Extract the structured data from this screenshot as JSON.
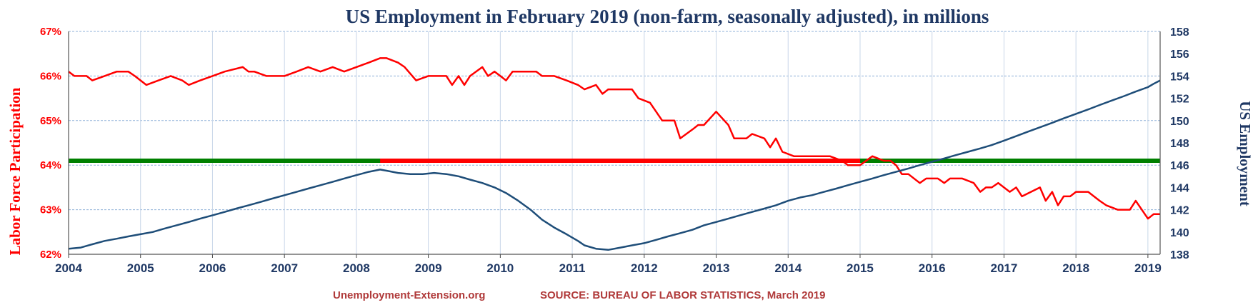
{
  "chart_data": {
    "type": "line",
    "title": "US Employment in February 2019 (non-farm, seasonally adjusted), in millions",
    "ylabel_left": "Labor Force Participation",
    "ylabel_right": "US Employment",
    "footer_left": "Unemployment-Extension.org",
    "footer_right": "SOURCE: BUREAU OF LABOR STATISTICS, March 2019",
    "x_ticks": [
      "2004",
      "2005",
      "2006",
      "2007",
      "2008",
      "2009",
      "2010",
      "2011",
      "2012",
      "2013",
      "2014",
      "2015",
      "2016",
      "2017",
      "2018",
      "2019"
    ],
    "xlim": [
      2004,
      2019.17
    ],
    "y_left_ticks": [
      "62%",
      "63%",
      "64%",
      "65%",
      "66%",
      "67%"
    ],
    "y_left_lim": [
      62,
      67
    ],
    "y_right_ticks": [
      "138",
      "140",
      "142",
      "144",
      "146",
      "148",
      "150",
      "152",
      "154",
      "156",
      "158"
    ],
    "y_right_lim": [
      138,
      158
    ],
    "grid": true,
    "colors": {
      "participation": "#ff0000",
      "employment": "#1f4e79",
      "reference_green": "#008000",
      "reference_red": "#ff0000",
      "title": "#1f3864"
    },
    "series": [
      {
        "axis": "left",
        "points": [
          [
            2004.0,
            66.1
          ],
          [
            2004.08,
            66.0
          ],
          [
            2004.25,
            66.0
          ],
          [
            2004.33,
            65.9
          ],
          [
            2004.5,
            66.0
          ],
          [
            2004.67,
            66.1
          ],
          [
            2004.83,
            66.1
          ],
          [
            2004.92,
            66.0
          ],
          [
            2005.08,
            65.8
          ],
          [
            2005.25,
            65.9
          ],
          [
            2005.42,
            66.0
          ],
          [
            2005.58,
            65.9
          ],
          [
            2005.67,
            65.8
          ],
          [
            2005.83,
            65.9
          ],
          [
            2006.0,
            66.0
          ],
          [
            2006.17,
            66.1
          ],
          [
            2006.42,
            66.2
          ],
          [
            2006.5,
            66.1
          ],
          [
            2006.58,
            66.1
          ],
          [
            2006.75,
            66.0
          ],
          [
            2006.92,
            66.0
          ],
          [
            2007.0,
            66.0
          ],
          [
            2007.17,
            66.1
          ],
          [
            2007.33,
            66.2
          ],
          [
            2007.5,
            66.1
          ],
          [
            2007.67,
            66.2
          ],
          [
            2007.83,
            66.1
          ],
          [
            2008.0,
            66.2
          ],
          [
            2008.17,
            66.3
          ],
          [
            2008.33,
            66.4
          ],
          [
            2008.42,
            66.4
          ],
          [
            2008.58,
            66.3
          ],
          [
            2008.67,
            66.2
          ],
          [
            2008.83,
            65.9
          ],
          [
            2009.0,
            66.0
          ],
          [
            2009.17,
            66.0
          ],
          [
            2009.25,
            66.0
          ],
          [
            2009.33,
            65.8
          ],
          [
            2009.42,
            66.0
          ],
          [
            2009.5,
            65.8
          ],
          [
            2009.58,
            66.0
          ],
          [
            2009.75,
            66.2
          ],
          [
            2009.83,
            66.0
          ],
          [
            2009.92,
            66.1
          ],
          [
            2010.0,
            66.0
          ],
          [
            2010.08,
            65.9
          ],
          [
            2010.17,
            66.1
          ],
          [
            2010.33,
            66.1
          ],
          [
            2010.5,
            66.1
          ],
          [
            2010.58,
            66.0
          ],
          [
            2010.75,
            66.0
          ],
          [
            2010.92,
            65.9
          ],
          [
            2011.08,
            65.8
          ],
          [
            2011.17,
            65.7
          ],
          [
            2011.33,
            65.8
          ],
          [
            2011.42,
            65.6
          ],
          [
            2011.5,
            65.7
          ],
          [
            2011.67,
            65.7
          ],
          [
            2011.83,
            65.7
          ],
          [
            2011.92,
            65.5
          ],
          [
            2012.08,
            65.4
          ],
          [
            2012.25,
            65.0
          ],
          [
            2012.33,
            65.0
          ],
          [
            2012.42,
            65.0
          ],
          [
            2012.5,
            64.6
          ],
          [
            2012.67,
            64.8
          ],
          [
            2012.75,
            64.9
          ],
          [
            2012.83,
            64.9
          ],
          [
            2013.0,
            65.2
          ],
          [
            2013.17,
            64.9
          ],
          [
            2013.25,
            64.6
          ],
          [
            2013.42,
            64.6
          ],
          [
            2013.5,
            64.7
          ],
          [
            2013.67,
            64.6
          ],
          [
            2013.75,
            64.4
          ],
          [
            2013.83,
            64.6
          ],
          [
            2013.92,
            64.3
          ],
          [
            2014.08,
            64.2
          ],
          [
            2014.25,
            64.2
          ],
          [
            2014.42,
            64.2
          ],
          [
            2014.58,
            64.2
          ],
          [
            2014.75,
            64.1
          ],
          [
            2014.83,
            64.0
          ],
          [
            2014.92,
            64.0
          ],
          [
            2015.0,
            64.0
          ],
          [
            2015.17,
            64.2
          ],
          [
            2015.33,
            64.1
          ],
          [
            2015.42,
            64.1
          ],
          [
            2015.5,
            64.0
          ],
          [
            2015.58,
            63.8
          ],
          [
            2015.67,
            63.8
          ],
          [
            2015.83,
            63.6
          ],
          [
            2015.92,
            63.7
          ],
          [
            2016.08,
            63.7
          ],
          [
            2016.17,
            63.6
          ],
          [
            2016.25,
            63.7
          ],
          [
            2016.42,
            63.7
          ],
          [
            2016.58,
            63.6
          ],
          [
            2016.67,
            63.4
          ],
          [
            2016.75,
            63.5
          ],
          [
            2016.83,
            63.5
          ],
          [
            2016.92,
            63.6
          ],
          [
            2017.08,
            63.4
          ],
          [
            2017.17,
            63.5
          ],
          [
            2017.25,
            63.3
          ],
          [
            2017.5,
            63.5
          ],
          [
            2017.58,
            63.2
          ],
          [
            2017.67,
            63.4
          ],
          [
            2017.75,
            63.1
          ],
          [
            2017.83,
            63.3
          ],
          [
            2017.92,
            63.3
          ],
          [
            2018.0,
            63.4
          ],
          [
            2018.17,
            63.4
          ],
          [
            2018.25,
            63.3
          ],
          [
            2018.33,
            63.2
          ],
          [
            2018.42,
            63.1
          ],
          [
            2018.58,
            63.0
          ],
          [
            2018.75,
            63.0
          ],
          [
            2018.83,
            63.2
          ],
          [
            2019.0,
            62.8
          ],
          [
            2019.08,
            62.9
          ],
          [
            2019.17,
            62.9
          ]
        ]
      },
      {
        "axis": "right",
        "points": [
          [
            2004.0,
            138.5
          ],
          [
            2004.17,
            138.6
          ],
          [
            2004.33,
            138.9
          ],
          [
            2004.5,
            139.2
          ],
          [
            2004.67,
            139.4
          ],
          [
            2004.83,
            139.6
          ],
          [
            2005.0,
            139.8
          ],
          [
            2005.17,
            140.0
          ],
          [
            2005.33,
            140.3
          ],
          [
            2005.5,
            140.6
          ],
          [
            2005.67,
            140.9
          ],
          [
            2005.83,
            141.2
          ],
          [
            2006.0,
            141.5
          ],
          [
            2006.17,
            141.8
          ],
          [
            2006.33,
            142.1
          ],
          [
            2006.5,
            142.4
          ],
          [
            2006.67,
            142.7
          ],
          [
            2006.83,
            143.0
          ],
          [
            2007.0,
            143.3
          ],
          [
            2007.17,
            143.6
          ],
          [
            2007.33,
            143.9
          ],
          [
            2007.5,
            144.2
          ],
          [
            2007.67,
            144.5
          ],
          [
            2007.83,
            144.8
          ],
          [
            2008.0,
            145.1
          ],
          [
            2008.17,
            145.4
          ],
          [
            2008.33,
            145.6
          ],
          [
            2008.42,
            145.5
          ],
          [
            2008.58,
            145.3
          ],
          [
            2008.75,
            145.2
          ],
          [
            2008.92,
            145.2
          ],
          [
            2009.08,
            145.3
          ],
          [
            2009.25,
            145.2
          ],
          [
            2009.42,
            145.0
          ],
          [
            2009.58,
            144.7
          ],
          [
            2009.75,
            144.4
          ],
          [
            2009.92,
            144.0
          ],
          [
            2010.08,
            143.5
          ],
          [
            2010.25,
            142.8
          ],
          [
            2010.42,
            142.0
          ],
          [
            2010.58,
            141.1
          ],
          [
            2010.75,
            140.4
          ],
          [
            2010.92,
            139.8
          ],
          [
            2011.08,
            139.2
          ],
          [
            2011.17,
            138.8
          ],
          [
            2011.33,
            138.5
          ],
          [
            2011.5,
            138.4
          ],
          [
            2011.67,
            138.6
          ],
          [
            2011.83,
            138.8
          ],
          [
            2012.0,
            139.0
          ],
          [
            2012.17,
            139.3
          ],
          [
            2012.33,
            139.6
          ],
          [
            2012.5,
            139.9
          ],
          [
            2012.67,
            140.2
          ],
          [
            2012.83,
            140.6
          ],
          [
            2013.0,
            140.9
          ],
          [
            2013.17,
            141.2
          ],
          [
            2013.33,
            141.5
          ],
          [
            2013.5,
            141.8
          ],
          [
            2013.67,
            142.1
          ],
          [
            2013.83,
            142.4
          ],
          [
            2014.0,
            142.8
          ],
          [
            2014.17,
            143.1
          ],
          [
            2014.33,
            143.3
          ],
          [
            2014.5,
            143.6
          ],
          [
            2014.67,
            143.9
          ],
          [
            2014.83,
            144.2
          ],
          [
            2015.0,
            144.5
          ],
          [
            2015.17,
            144.8
          ],
          [
            2015.33,
            145.1
          ],
          [
            2015.5,
            145.4
          ],
          [
            2015.67,
            145.7
          ],
          [
            2015.83,
            146.0
          ],
          [
            2016.0,
            146.3
          ],
          [
            2016.17,
            146.6
          ],
          [
            2016.33,
            146.9
          ],
          [
            2016.5,
            147.2
          ],
          [
            2016.67,
            147.5
          ],
          [
            2016.83,
            147.8
          ],
          [
            2017.0,
            148.2
          ],
          [
            2017.17,
            148.6
          ],
          [
            2017.33,
            149.0
          ],
          [
            2017.5,
            149.4
          ],
          [
            2017.67,
            149.8
          ],
          [
            2017.83,
            150.2
          ],
          [
            2018.0,
            150.6
          ],
          [
            2018.17,
            151.0
          ],
          [
            2018.33,
            151.4
          ],
          [
            2018.5,
            151.8
          ],
          [
            2018.67,
            152.2
          ],
          [
            2018.83,
            152.6
          ],
          [
            2019.0,
            153.0
          ],
          [
            2019.08,
            153.3
          ],
          [
            2019.17,
            153.6
          ]
        ]
      }
    ],
    "reference_value": 64.1
  }
}
